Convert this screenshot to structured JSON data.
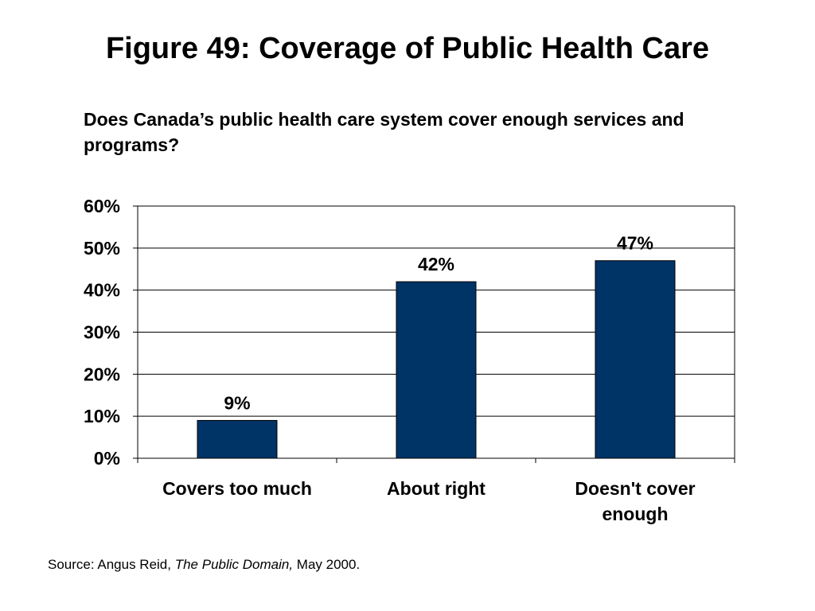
{
  "figure_title": "Figure 49: Coverage of Public Health Care",
  "question": "Does Canada’s public health care system cover enough services and programs?",
  "source": {
    "prefix": "Source: Angus Reid, ",
    "publication": "The Public Domain,",
    "date": " May 2000."
  },
  "colors": {
    "bar": "#003366",
    "gridline": "#000000",
    "axis": "#000000"
  },
  "chart_data": {
    "type": "bar",
    "categories": [
      [
        "Covers too much"
      ],
      [
        "About right"
      ],
      [
        "Doesn't cover",
        "enough"
      ]
    ],
    "values": [
      9,
      42,
      47
    ],
    "value_labels": [
      "9%",
      "42%",
      "47%"
    ],
    "ylim": [
      0,
      60
    ],
    "yticks": [
      0,
      10,
      20,
      30,
      40,
      50,
      60
    ],
    "ytick_labels": [
      "0%",
      "10%",
      "20%",
      "30%",
      "40%",
      "50%",
      "60%"
    ],
    "grid": true,
    "legend": "none"
  }
}
